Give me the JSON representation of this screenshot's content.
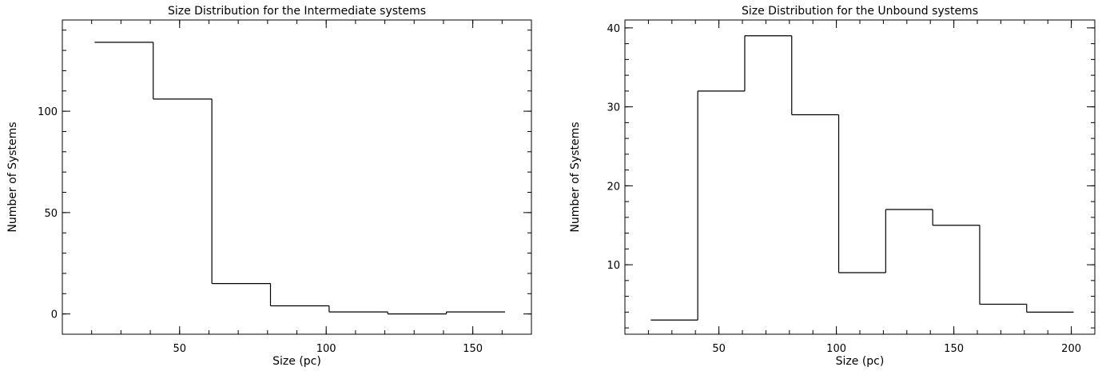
{
  "chart_data": [
    {
      "type": "histogram",
      "title": "Size Distribution for the Intermediate systems",
      "xlabel": "Size (pc)",
      "ylabel": "Number of Systems",
      "xlim": [
        10,
        170
      ],
      "ylim": [
        -10,
        145
      ],
      "xticks": [
        50,
        100,
        150
      ],
      "yticks": [
        0,
        50,
        100
      ],
      "bin_edges": [
        21,
        41,
        61,
        81,
        101,
        121,
        141,
        161
      ],
      "values": [
        134,
        106,
        15,
        4,
        1,
        0,
        1
      ],
      "grid": false
    },
    {
      "type": "histogram",
      "title": "Size Distribution for the Unbound systems",
      "xlabel": "Size (pc)",
      "ylabel": "Number of Systems",
      "xlim": [
        10,
        210
      ],
      "ylim": [
        1.2,
        41.0
      ],
      "xticks": [
        50,
        100,
        150,
        200
      ],
      "yticks": [
        10,
        20,
        30,
        40
      ],
      "bin_edges": [
        21,
        41,
        61,
        81,
        101,
        121,
        141,
        161,
        181,
        201
      ],
      "values": [
        3,
        32,
        39,
        29,
        9,
        17,
        15,
        5,
        4
      ],
      "grid": false
    }
  ]
}
